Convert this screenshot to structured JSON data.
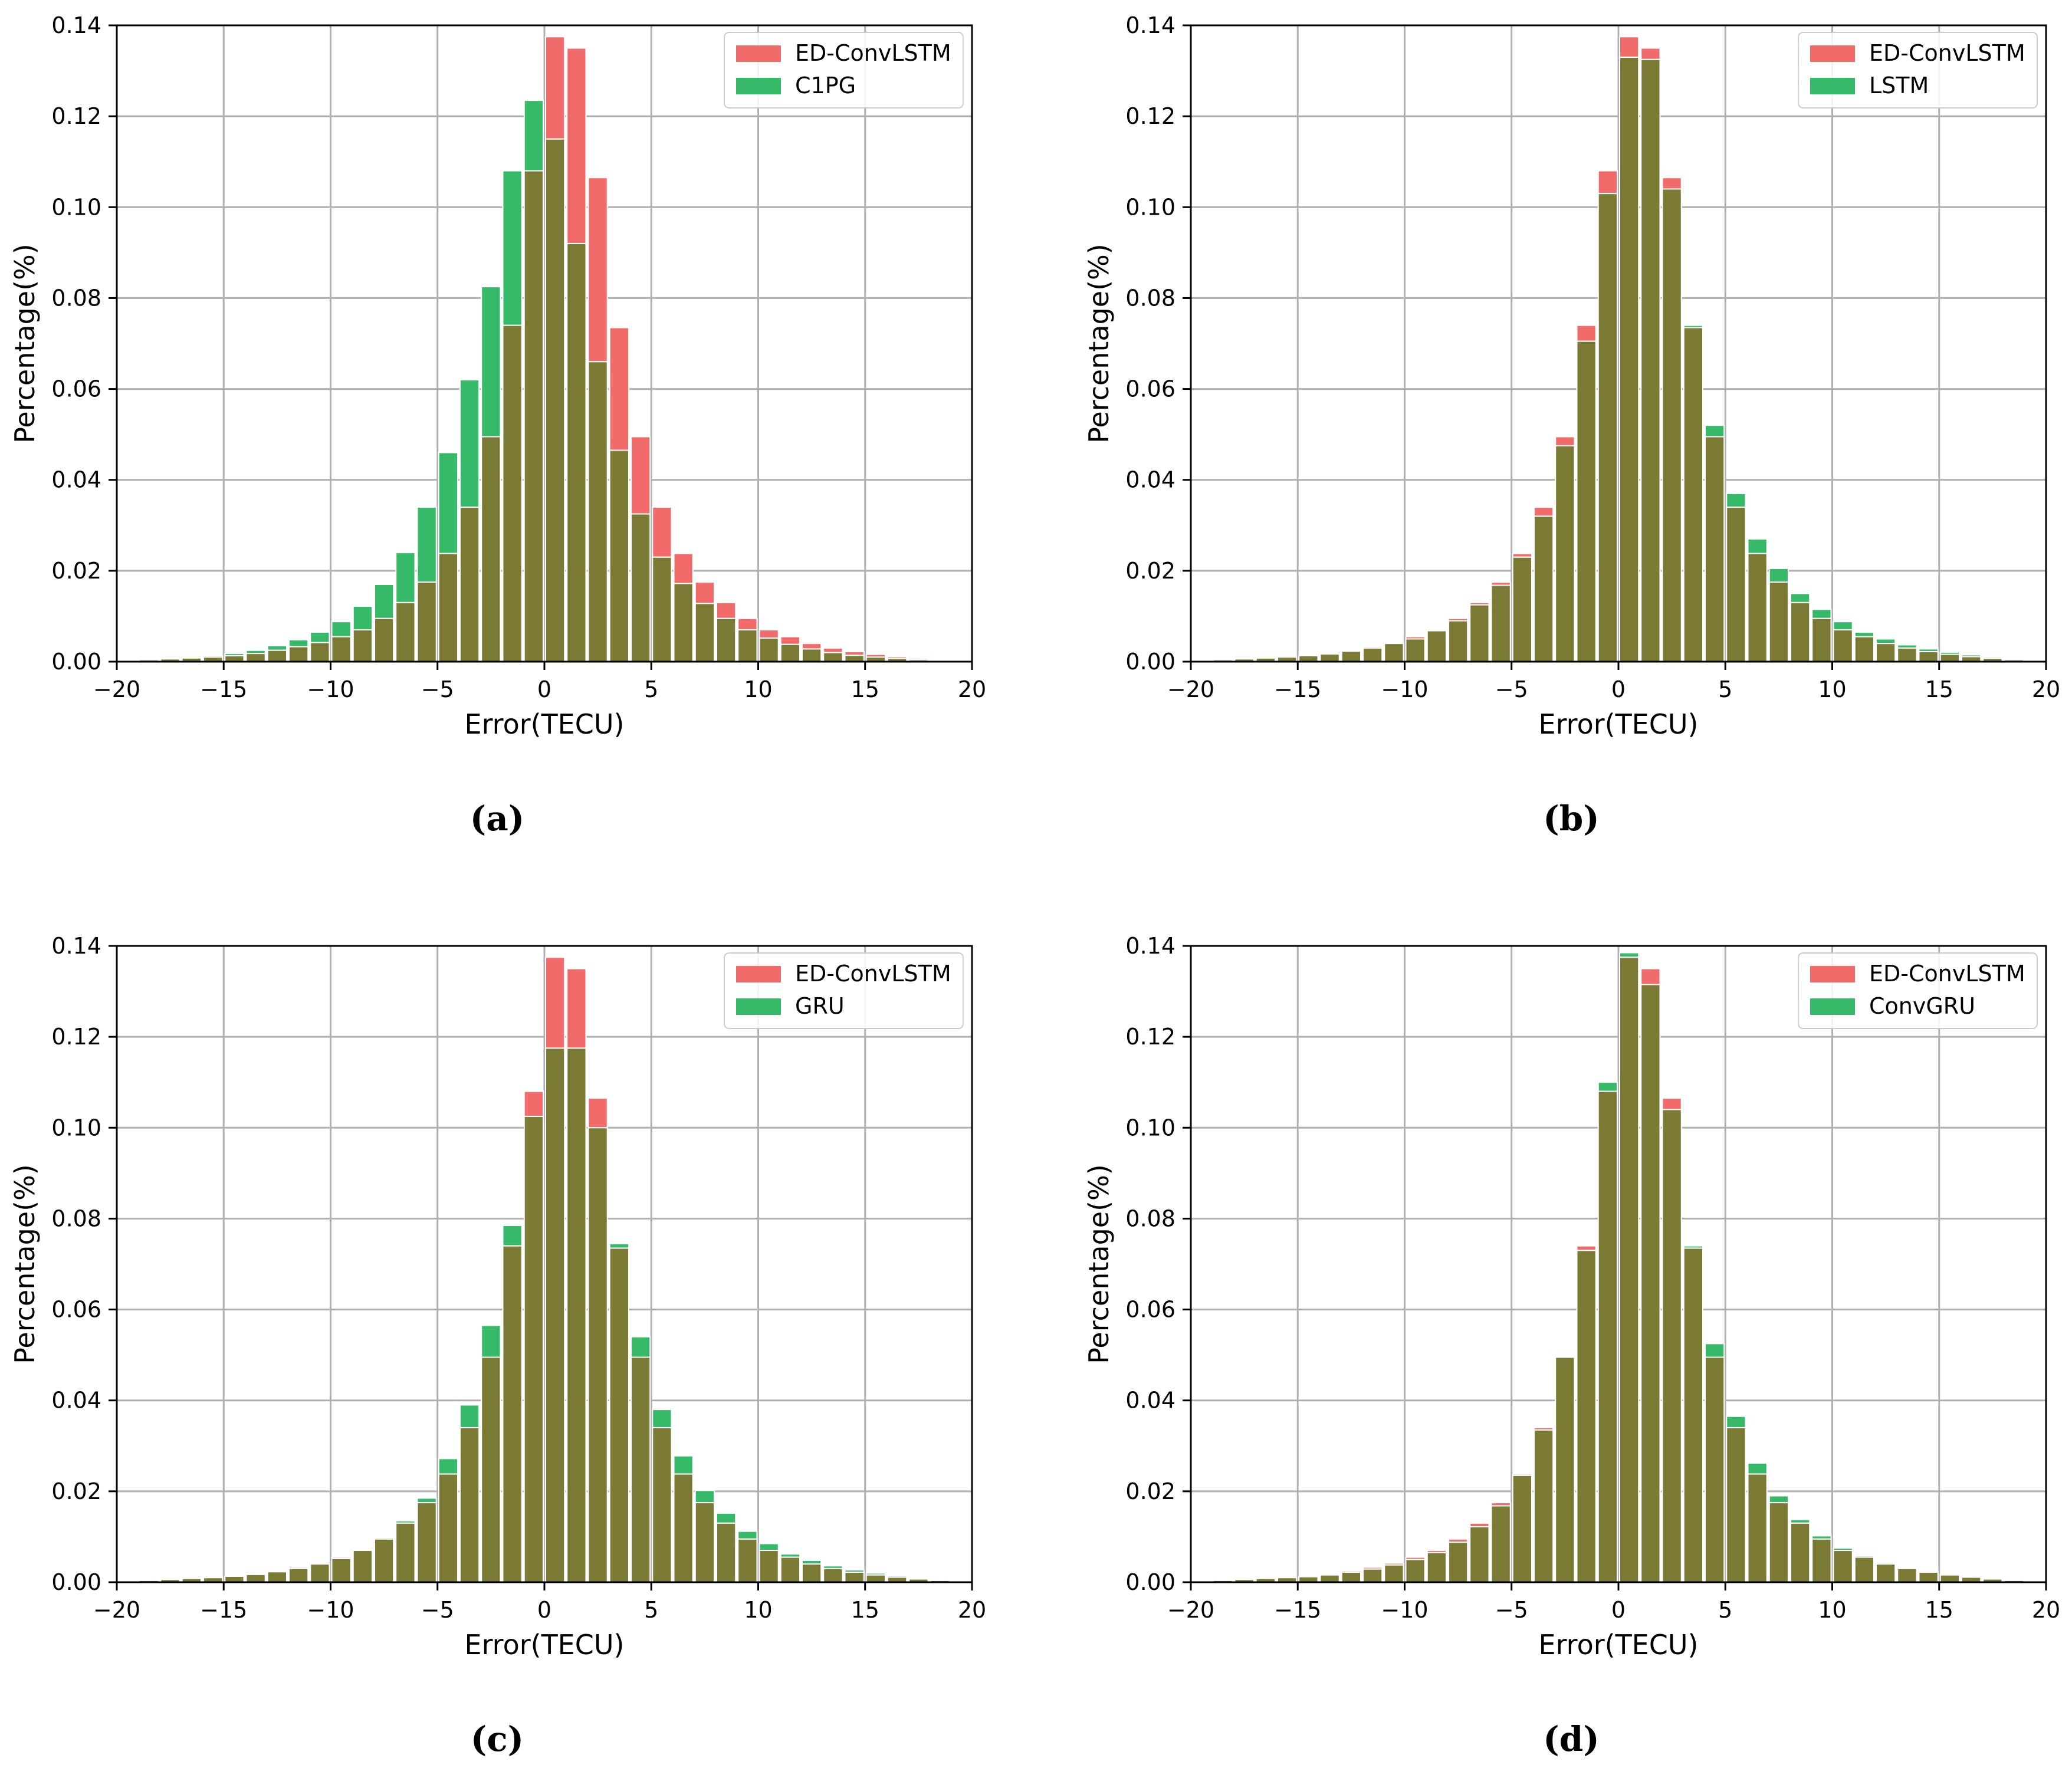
{
  "figure": {
    "captions": [
      "(a)",
      "(b)",
      "(c)",
      "(d)"
    ],
    "colors": {
      "ed": "#f26b6b",
      "other": "#37b96a",
      "overlap": "#7a7a35",
      "grid": "#b0b0b0"
    }
  },
  "chart_data": [
    {
      "type": "bar",
      "panel": "a",
      "title": "",
      "xlabel": "Error(TECU)",
      "ylabel": "Percentage(%)",
      "xlim": [
        -20,
        20
      ],
      "ylim": [
        0,
        0.14
      ],
      "xticks": [
        "−20",
        "−15",
        "−10",
        "−5",
        "0",
        "5",
        "10",
        "15",
        "20"
      ],
      "yticks": [
        "0.00",
        "0.02",
        "0.04",
        "0.06",
        "0.08",
        "0.10",
        "0.12",
        "0.14"
      ],
      "legend_position": "top-right",
      "bin_edges_start": -20,
      "bin_width": 1,
      "series": [
        {
          "name": "ED-ConvLSTM",
          "values": [
            0.0002,
            0.0004,
            0.0006,
            0.0008,
            0.001,
            0.0013,
            0.0018,
            0.0025,
            0.0033,
            0.0042,
            0.0055,
            0.007,
            0.0095,
            0.013,
            0.0175,
            0.0238,
            0.034,
            0.0495,
            0.074,
            0.108,
            0.1375,
            0.135,
            0.1065,
            0.0735,
            0.0495,
            0.034,
            0.0238,
            0.0175,
            0.013,
            0.0095,
            0.007,
            0.0055,
            0.004,
            0.003,
            0.0022,
            0.0016,
            0.0011,
            0.0007,
            0.0004,
            0.0002
          ]
        },
        {
          "name": "C1PG",
          "values": [
            0.0002,
            0.0004,
            0.0006,
            0.0009,
            0.0013,
            0.0018,
            0.0025,
            0.0035,
            0.0048,
            0.0065,
            0.0088,
            0.0122,
            0.017,
            0.024,
            0.034,
            0.046,
            0.062,
            0.0825,
            0.108,
            0.1235,
            0.115,
            0.092,
            0.066,
            0.0465,
            0.0325,
            0.023,
            0.0172,
            0.0128,
            0.0095,
            0.007,
            0.0052,
            0.0038,
            0.0028,
            0.002,
            0.0014,
            0.001,
            0.0007,
            0.0004,
            0.0002,
            0.0001
          ]
        }
      ]
    },
    {
      "type": "bar",
      "panel": "b",
      "title": "",
      "xlabel": "Error(TECU)",
      "ylabel": "Percentage(%)",
      "xlim": [
        -20,
        20
      ],
      "ylim": [
        0,
        0.14
      ],
      "xticks": [
        "−20",
        "−15",
        "−10",
        "−5",
        "0",
        "5",
        "10",
        "15",
        "20"
      ],
      "yticks": [
        "0.00",
        "0.02",
        "0.04",
        "0.06",
        "0.08",
        "0.10",
        "0.12",
        "0.14"
      ],
      "legend_position": "top-right",
      "bin_edges_start": -20,
      "bin_width": 1,
      "series": [
        {
          "name": "ED-ConvLSTM",
          "values": [
            0.0002,
            0.0004,
            0.0006,
            0.0008,
            0.001,
            0.0013,
            0.0018,
            0.0025,
            0.0033,
            0.0042,
            0.0055,
            0.007,
            0.0095,
            0.013,
            0.0175,
            0.0238,
            0.034,
            0.0495,
            0.074,
            0.108,
            0.1375,
            0.135,
            0.1065,
            0.0735,
            0.0495,
            0.034,
            0.0238,
            0.0175,
            0.013,
            0.0095,
            0.007,
            0.0055,
            0.004,
            0.003,
            0.0022,
            0.0016,
            0.0011,
            0.0007,
            0.0004,
            0.0002
          ]
        },
        {
          "name": "LSTM",
          "values": [
            0.0002,
            0.0004,
            0.0006,
            0.0008,
            0.001,
            0.0013,
            0.0017,
            0.0023,
            0.003,
            0.004,
            0.005,
            0.0068,
            0.009,
            0.0125,
            0.0168,
            0.023,
            0.032,
            0.0475,
            0.0705,
            0.103,
            0.133,
            0.1325,
            0.104,
            0.074,
            0.052,
            0.037,
            0.027,
            0.0205,
            0.015,
            0.0115,
            0.0088,
            0.0065,
            0.005,
            0.0037,
            0.0028,
            0.0021,
            0.0015,
            0.001,
            0.0006,
            0.0003
          ]
        }
      ]
    },
    {
      "type": "bar",
      "panel": "c",
      "title": "",
      "xlabel": "Error(TECU)",
      "ylabel": "Percentage(%)",
      "xlim": [
        -20,
        20
      ],
      "ylim": [
        0,
        0.14
      ],
      "xticks": [
        "−20",
        "−15",
        "−10",
        "−5",
        "0",
        "5",
        "10",
        "15",
        "20"
      ],
      "yticks": [
        "0.00",
        "0.02",
        "0.04",
        "0.06",
        "0.08",
        "0.10",
        "0.12",
        "0.14"
      ],
      "legend_position": "top-right",
      "bin_edges_start": -20,
      "bin_width": 1,
      "series": [
        {
          "name": "ED-ConvLSTM",
          "values": [
            0.0002,
            0.0004,
            0.0006,
            0.0008,
            0.001,
            0.0013,
            0.0018,
            0.0025,
            0.0033,
            0.0042,
            0.0055,
            0.007,
            0.0095,
            0.013,
            0.0175,
            0.0238,
            0.034,
            0.0495,
            0.074,
            0.108,
            0.1375,
            0.135,
            0.1065,
            0.0735,
            0.0495,
            0.034,
            0.0238,
            0.0175,
            0.013,
            0.0095,
            0.007,
            0.0055,
            0.004,
            0.003,
            0.0022,
            0.0016,
            0.0011,
            0.0007,
            0.0004,
            0.0002
          ]
        },
        {
          "name": "GRU",
          "values": [
            0.0002,
            0.0004,
            0.0006,
            0.0008,
            0.001,
            0.0013,
            0.0017,
            0.0023,
            0.003,
            0.004,
            0.0052,
            0.0072,
            0.0098,
            0.0135,
            0.0185,
            0.0272,
            0.039,
            0.0565,
            0.0785,
            0.1025,
            0.1175,
            0.1175,
            0.1,
            0.0745,
            0.054,
            0.038,
            0.0278,
            0.0202,
            0.0152,
            0.0112,
            0.0085,
            0.0062,
            0.0048,
            0.0036,
            0.0027,
            0.002,
            0.0014,
            0.0009,
            0.0005,
            0.0003
          ]
        }
      ]
    },
    {
      "type": "bar",
      "panel": "d",
      "title": "",
      "xlabel": "Error(TECU)",
      "ylabel": "Percentage(%)",
      "xlim": [
        -20,
        20
      ],
      "ylim": [
        0,
        0.14
      ],
      "xticks": [
        "−20",
        "−15",
        "−10",
        "−5",
        "0",
        "5",
        "10",
        "15",
        "20"
      ],
      "yticks": [
        "0.00",
        "0.02",
        "0.04",
        "0.06",
        "0.08",
        "0.10",
        "0.12",
        "0.14"
      ],
      "legend_position": "top-right",
      "bin_edges_start": -20,
      "bin_width": 1,
      "series": [
        {
          "name": "ED-ConvLSTM",
          "values": [
            0.0002,
            0.0004,
            0.0006,
            0.0008,
            0.001,
            0.0013,
            0.0018,
            0.0025,
            0.0033,
            0.0042,
            0.0055,
            0.007,
            0.0095,
            0.013,
            0.0175,
            0.0238,
            0.034,
            0.0495,
            0.074,
            0.108,
            0.1375,
            0.135,
            0.1065,
            0.0735,
            0.0495,
            0.034,
            0.0238,
            0.0175,
            0.013,
            0.0095,
            0.007,
            0.0055,
            0.004,
            0.003,
            0.0022,
            0.0016,
            0.0011,
            0.0007,
            0.0004,
            0.0002
          ]
        },
        {
          "name": "ConvGRU",
          "values": [
            0.0002,
            0.0004,
            0.0006,
            0.0008,
            0.001,
            0.0012,
            0.0016,
            0.0022,
            0.0029,
            0.0038,
            0.005,
            0.0065,
            0.0088,
            0.0122,
            0.0168,
            0.0235,
            0.0335,
            0.0495,
            0.073,
            0.11,
            0.1385,
            0.1315,
            0.104,
            0.074,
            0.0525,
            0.0365,
            0.0262,
            0.019,
            0.0138,
            0.0102,
            0.0075,
            0.0058,
            0.0043,
            0.0032,
            0.0024,
            0.0017,
            0.0012,
            0.0008,
            0.0005,
            0.0003
          ]
        }
      ]
    }
  ]
}
